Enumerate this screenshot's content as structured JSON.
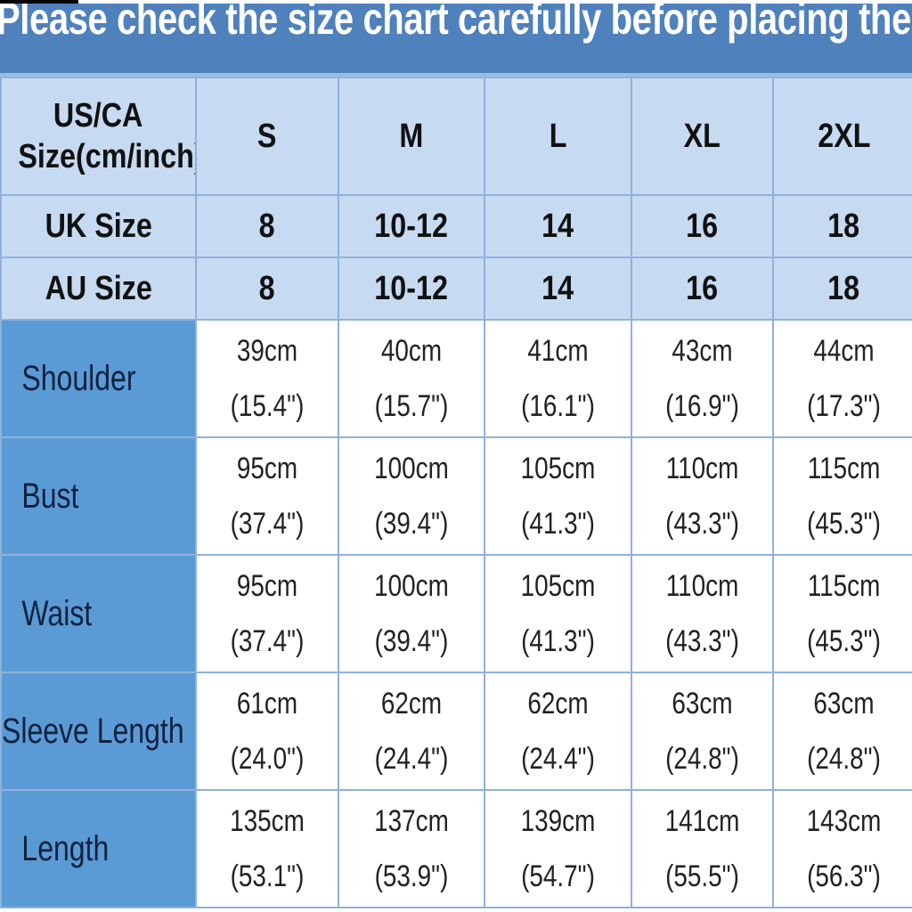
{
  "banner": {
    "text": "Please check the size chart carefully before placing the o"
  },
  "header": {
    "corner_line1": "US/CA",
    "corner_line2": "Size(cm/inch)",
    "sizes": [
      "S",
      "M",
      "L",
      "XL",
      "2XL"
    ]
  },
  "uk": {
    "label": "UK Size",
    "values": [
      "8",
      "10-12",
      "14",
      "16",
      "18"
    ]
  },
  "au": {
    "label": "AU Size",
    "values": [
      "8",
      "10-12",
      "14",
      "16",
      "18"
    ]
  },
  "rows": [
    {
      "label": "Shoulder",
      "cm": [
        "39cm",
        "40cm",
        "41cm",
        "43cm",
        "44cm"
      ],
      "inch": [
        "(15.4\")",
        "(15.7\")",
        "(16.1\")",
        "(16.9\")",
        "(17.3\")"
      ]
    },
    {
      "label": "Bust",
      "cm": [
        "95cm",
        "100cm",
        "105cm",
        "110cm",
        "115cm"
      ],
      "inch": [
        "(37.4\")",
        "(39.4\")",
        "(41.3\")",
        "(43.3\")",
        "(45.3\")"
      ]
    },
    {
      "label": "Waist",
      "cm": [
        "95cm",
        "100cm",
        "105cm",
        "110cm",
        "115cm"
      ],
      "inch": [
        "(37.4\")",
        "(39.4\")",
        "(41.3\")",
        "(43.3\")",
        "(45.3\")"
      ]
    },
    {
      "label": "Sleeve Length",
      "cm": [
        "61cm",
        "62cm",
        "62cm",
        "63cm",
        "63cm"
      ],
      "inch": [
        "(24.0\")",
        "(24.4\")",
        "(24.4\")",
        "(24.8\")",
        "(24.8\")"
      ]
    },
    {
      "label": "Length",
      "cm": [
        "135cm",
        "137cm",
        "139cm",
        "141cm",
        "143cm"
      ],
      "inch": [
        "(53.1\")",
        "(53.9\")",
        "(54.7\")",
        "(55.5\")",
        "(56.3\")"
      ]
    }
  ],
  "colors": {
    "banner": "#4f81bd",
    "header_bg": "#c6dbf2",
    "label_bg": "#5b9bd5",
    "grid": "#8fb1dc"
  }
}
